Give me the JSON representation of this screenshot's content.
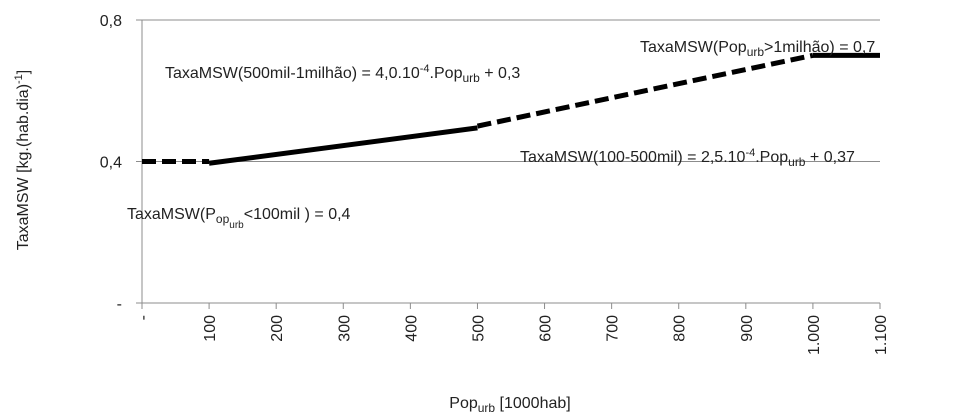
{
  "chart_data": {
    "type": "line",
    "x_label": [
      {
        "text": "Pop"
      },
      {
        "text": "urb",
        "shift": "sub"
      },
      {
        "text": " [1000hab]"
      }
    ],
    "y_label": [
      {
        "text": "TaxaMSW [kg.(hab.dia)"
      },
      {
        "text": "-1",
        "shift": "sup"
      },
      {
        "text": "]"
      }
    ],
    "xlim": [
      0,
      1100
    ],
    "xticks": [
      {
        "value": 0,
        "label": "-"
      },
      100,
      200,
      300,
      400,
      500,
      600,
      700,
      800,
      900,
      {
        "value": 1000,
        "label": "1.000"
      },
      {
        "value": 1100,
        "label": "1.100"
      }
    ],
    "ylim": [
      0,
      0.8
    ],
    "yticks": [
      {
        "value": 0,
        "label": "-"
      },
      {
        "value": 0.4,
        "label": "0,4"
      },
      {
        "value": 0.8,
        "label": "0,8"
      }
    ],
    "grid": true,
    "series": [
      {
        "color": "#000000",
        "dashed": true,
        "x": [
          0,
          100
        ],
        "values": [
          0.4,
          0.4
        ]
      },
      {
        "color": "#000000",
        "dashed": false,
        "x": [
          100,
          500
        ],
        "values": [
          0.395,
          0.495
        ]
      },
      {
        "color": "#000000",
        "dashed": true,
        "x": [
          500,
          1000
        ],
        "values": [
          0.5,
          0.7
        ]
      },
      {
        "color": "#000000",
        "dashed": false,
        "x": [
          1000,
          1100
        ],
        "values": [
          0.7,
          0.7
        ]
      }
    ],
    "annotations": [
      {
        "parts": [
          {
            "text": "TaxaMSW(Pop"
          },
          {
            "text": "urb",
            "shift": "sub"
          },
          {
            "text": ">1milhão) = 0,7"
          }
        ]
      },
      {
        "parts": [
          {
            "text": "TaxaMSW(500mil-1milhão) = 4,0.10"
          },
          {
            "text": "-4",
            "shift": "sup"
          },
          {
            "text": ".Pop"
          },
          {
            "text": "urb",
            "shift": "sub"
          },
          {
            "text": " + 0,3"
          }
        ]
      },
      {
        "parts": [
          {
            "text": "TaxaMSW(100-500mil) = 2,5.10"
          },
          {
            "text": "-4",
            "shift": "sup"
          },
          {
            "text": ".Pop"
          },
          {
            "text": "urb",
            "shift": "sub"
          },
          {
            "text": " + 0,37"
          }
        ]
      },
      {
        "parts": [
          {
            "text": "TaxaMSW(P"
          },
          {
            "text": "op",
            "shift": "sub"
          },
          {
            "text": "urb",
            "shift": "sub2"
          },
          {
            "text": "<100mil ) = 0,4"
          }
        ]
      }
    ]
  }
}
